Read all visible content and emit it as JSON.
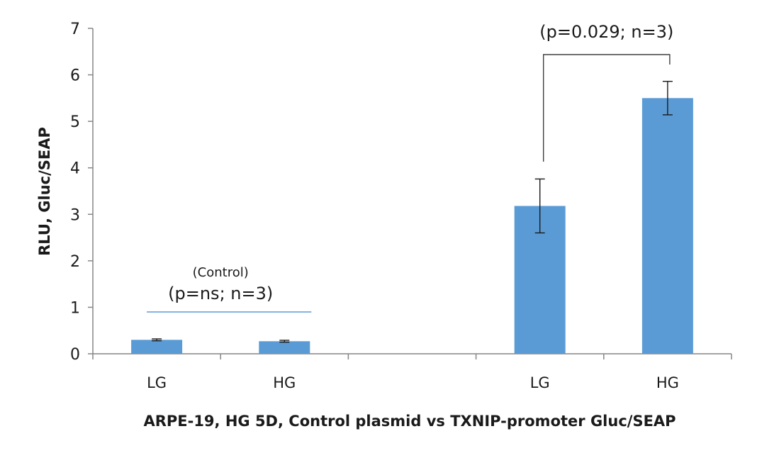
{
  "chart_data": {
    "type": "bar",
    "title": "",
    "xlabel": "ARPE-19, HG 5D, Control plasmid vs TXNIP-promoter Gluc/SEAP",
    "ylabel": "RLU, Gluc/SEAP",
    "ylim": [
      0,
      7
    ],
    "yticks": [
      0,
      1,
      2,
      3,
      4,
      5,
      6,
      7
    ],
    "grid": false,
    "legend": "none",
    "bar_color": "#5b9bd5",
    "slots": [
      "LG",
      "HG",
      "",
      "LG",
      "HG"
    ],
    "categories": [
      "LG",
      "HG",
      "LG",
      "HG"
    ],
    "values": [
      0.3,
      0.27,
      3.18,
      5.5
    ],
    "errors": [
      0.02,
      0.02,
      0.58,
      0.36
    ],
    "annotations": {
      "control_note": "(Control)",
      "control_p": "(p=ns; n=3)",
      "txnip_p": "(p=0.029; n=3)"
    },
    "control_line_color": "#5b9bd5",
    "bracket_color": "#404040"
  }
}
